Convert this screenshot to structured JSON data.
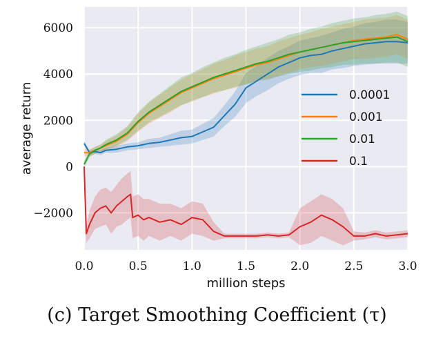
{
  "caption": "(c) Target Smoothing Coefficient (τ)",
  "chart_data": {
    "type": "line",
    "xlabel": "million steps",
    "ylabel": "average return",
    "xlim": [
      0,
      3.0
    ],
    "ylim": [
      -3600,
      6900
    ],
    "xticks": [
      0,
      0.5,
      1.0,
      1.5,
      2.0,
      2.5,
      3.0
    ],
    "xtick_labels": [
      "0.0",
      "0.5",
      "1.0",
      "1.5",
      "2.0",
      "2.5",
      "3.0"
    ],
    "yticks": [
      -2000,
      0,
      2000,
      4000,
      6000
    ],
    "ytick_labels": [
      "−2000",
      "0",
      "2000",
      "4000",
      "6000"
    ],
    "grid": true,
    "background": "#eaeaf2",
    "legend_position": "center-right",
    "series": [
      {
        "name": "0.0001",
        "color": "#1f77b4",
        "x": [
          0,
          0.05,
          0.1,
          0.15,
          0.2,
          0.3,
          0.4,
          0.5,
          0.6,
          0.7,
          0.8,
          0.9,
          1.0,
          1.1,
          1.2,
          1.3,
          1.4,
          1.5,
          1.6,
          1.7,
          1.8,
          1.9,
          2.0,
          2.1,
          2.2,
          2.3,
          2.4,
          2.5,
          2.6,
          2.7,
          2.8,
          2.9,
          3.0
        ],
        "y": [
          1000,
          600,
          650,
          600,
          700,
          750,
          850,
          900,
          1000,
          1050,
          1150,
          1250,
          1300,
          1500,
          1700,
          2200,
          2700,
          3400,
          3700,
          4000,
          4300,
          4500,
          4700,
          4800,
          4850,
          5000,
          5100,
          5200,
          5300,
          5350,
          5400,
          5400,
          5350
        ],
        "band": [
          100,
          100,
          100,
          100,
          100,
          150,
          150,
          150,
          200,
          200,
          250,
          300,
          300,
          350,
          400,
          450,
          550,
          650,
          650,
          700,
          700,
          700,
          750,
          750,
          800,
          800,
          850,
          850,
          900,
          900,
          950,
          950,
          900
        ]
      },
      {
        "name": "0.001",
        "color": "#ff7f0e",
        "x": [
          0,
          0.05,
          0.1,
          0.15,
          0.2,
          0.3,
          0.4,
          0.5,
          0.6,
          0.7,
          0.8,
          0.9,
          1.0,
          1.1,
          1.2,
          1.3,
          1.4,
          1.5,
          1.6,
          1.7,
          1.8,
          1.9,
          2.0,
          2.1,
          2.2,
          2.3,
          2.4,
          2.5,
          2.6,
          2.7,
          2.8,
          2.9,
          3.0
        ],
        "y": [
          600,
          600,
          700,
          800,
          900,
          1100,
          1400,
          1900,
          2300,
          2600,
          2900,
          3200,
          3400,
          3600,
          3800,
          3950,
          4100,
          4250,
          4400,
          4500,
          4650,
          4800,
          4950,
          5050,
          5150,
          5250,
          5350,
          5450,
          5500,
          5550,
          5600,
          5700,
          5500
        ],
        "band": [
          150,
          150,
          150,
          150,
          200,
          250,
          300,
          400,
          450,
          500,
          550,
          550,
          600,
          600,
          650,
          650,
          700,
          700,
          700,
          700,
          750,
          750,
          750,
          750,
          800,
          800,
          800,
          800,
          850,
          850,
          850,
          850,
          850
        ]
      },
      {
        "name": "0.01",
        "color": "#2ca02c",
        "x": [
          0,
          0.05,
          0.1,
          0.15,
          0.2,
          0.3,
          0.4,
          0.5,
          0.6,
          0.7,
          0.8,
          0.9,
          1.0,
          1.1,
          1.2,
          1.3,
          1.4,
          1.5,
          1.6,
          1.7,
          1.8,
          1.9,
          2.0,
          2.1,
          2.2,
          2.3,
          2.4,
          2.5,
          2.6,
          2.7,
          2.8,
          2.9,
          3.0
        ],
        "y": [
          100,
          550,
          700,
          800,
          950,
          1150,
          1450,
          1950,
          2350,
          2650,
          2950,
          3250,
          3450,
          3650,
          3850,
          4000,
          4150,
          4300,
          4450,
          4550,
          4700,
          4850,
          4950,
          5050,
          5150,
          5250,
          5350,
          5400,
          5450,
          5500,
          5550,
          5600,
          5400
        ],
        "band": [
          150,
          150,
          150,
          150,
          200,
          250,
          300,
          400,
          450,
          500,
          550,
          600,
          600,
          650,
          650,
          700,
          700,
          750,
          750,
          800,
          800,
          850,
          850,
          900,
          900,
          950,
          950,
          1000,
          1000,
          1050,
          1050,
          1100,
          1100
        ]
      },
      {
        "name": "0.1",
        "color": "#d62728",
        "x": [
          0,
          0.02,
          0.05,
          0.1,
          0.15,
          0.2,
          0.25,
          0.3,
          0.35,
          0.4,
          0.43,
          0.45,
          0.5,
          0.55,
          0.6,
          0.7,
          0.8,
          0.9,
          1.0,
          1.1,
          1.2,
          1.3,
          1.4,
          1.5,
          1.6,
          1.7,
          1.8,
          1.9,
          2.0,
          2.1,
          2.2,
          2.3,
          2.4,
          2.5,
          2.6,
          2.7,
          2.8,
          2.9,
          3.0
        ],
        "y": [
          0,
          -2900,
          -2500,
          -2000,
          -1800,
          -1700,
          -2000,
          -1700,
          -1500,
          -1300,
          -1200,
          -2200,
          -2100,
          -2300,
          -2200,
          -2400,
          -2300,
          -2500,
          -2200,
          -2300,
          -2800,
          -3000,
          -3000,
          -3000,
          -3000,
          -2950,
          -3000,
          -2950,
          -2600,
          -2400,
          -2100,
          -2300,
          -2600,
          -3000,
          -3000,
          -2900,
          -3000,
          -2950,
          -2900
        ],
        "band": [
          300,
          400,
          600,
          700,
          800,
          800,
          900,
          900,
          1000,
          1000,
          1000,
          900,
          900,
          900,
          800,
          800,
          700,
          700,
          700,
          700,
          400,
          100,
          100,
          100,
          100,
          100,
          100,
          100,
          800,
          900,
          900,
          900,
          800,
          200,
          150,
          150,
          150,
          150,
          150
        ]
      }
    ]
  }
}
